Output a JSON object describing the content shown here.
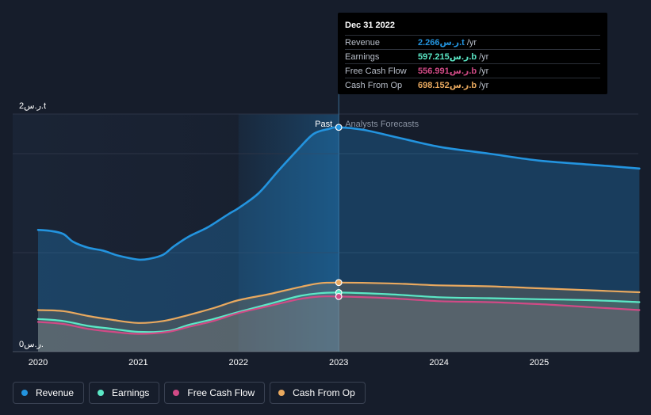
{
  "chart_data": {
    "type": "area",
    "ylim": [
      0,
      2.4
    ],
    "xlim": [
      2020,
      2026
    ],
    "y_labels": [
      {
        "value": 2.4,
        "text": "2ر.س.t"
      },
      {
        "value": 0,
        "text": "0ر.س."
      }
    ],
    "x_ticks": [
      {
        "value": 2020,
        "label": "2020"
      },
      {
        "value": 2021,
        "label": "2021"
      },
      {
        "value": 2022,
        "label": "2022"
      },
      {
        "value": 2023,
        "label": "2023"
      },
      {
        "value": 2024,
        "label": "2024"
      },
      {
        "value": 2025,
        "label": "2025"
      }
    ],
    "past_label": "Past",
    "forecast_label": "Analysts Forecasts",
    "divider_x": 2023,
    "highlight_start": 2022,
    "series": [
      {
        "name": "Revenue",
        "color": "#2394df",
        "points": [
          [
            2020,
            1.23
          ],
          [
            2020.12,
            1.22
          ],
          [
            2020.25,
            1.19
          ],
          [
            2020.35,
            1.11
          ],
          [
            2020.5,
            1.05
          ],
          [
            2020.65,
            1.02
          ],
          [
            2020.8,
            0.97
          ],
          [
            2021,
            0.93
          ],
          [
            2021.12,
            0.94
          ],
          [
            2021.25,
            0.98
          ],
          [
            2021.35,
            1.06
          ],
          [
            2021.5,
            1.16
          ],
          [
            2021.7,
            1.26
          ],
          [
            2021.9,
            1.39
          ],
          [
            2022,
            1.45
          ],
          [
            2022.2,
            1.6
          ],
          [
            2022.4,
            1.83
          ],
          [
            2022.6,
            2.05
          ],
          [
            2022.75,
            2.2
          ],
          [
            2022.9,
            2.25
          ],
          [
            2023,
            2.266
          ],
          [
            2023.25,
            2.24
          ],
          [
            2023.6,
            2.16
          ],
          [
            2024,
            2.07
          ],
          [
            2024.5,
            2.0
          ],
          [
            2025,
            1.93
          ],
          [
            2025.5,
            1.89
          ],
          [
            2026,
            1.85
          ]
        ]
      },
      {
        "name": "Earnings",
        "color": "#5be8c6",
        "points": [
          [
            2020,
            0.33
          ],
          [
            2020.25,
            0.31
          ],
          [
            2020.5,
            0.26
          ],
          [
            2020.75,
            0.23
          ],
          [
            2021,
            0.2
          ],
          [
            2021.3,
            0.21
          ],
          [
            2021.5,
            0.27
          ],
          [
            2021.75,
            0.33
          ],
          [
            2022,
            0.4
          ],
          [
            2022.3,
            0.48
          ],
          [
            2022.6,
            0.56
          ],
          [
            2022.8,
            0.59
          ],
          [
            2023,
            0.597
          ],
          [
            2023.5,
            0.58
          ],
          [
            2024,
            0.55
          ],
          [
            2024.5,
            0.54
          ],
          [
            2025,
            0.53
          ],
          [
            2025.5,
            0.52
          ],
          [
            2026,
            0.5
          ]
        ]
      },
      {
        "name": "Free Cash Flow",
        "color": "#d14a86",
        "points": [
          [
            2020,
            0.3
          ],
          [
            2020.25,
            0.28
          ],
          [
            2020.5,
            0.23
          ],
          [
            2020.75,
            0.2
          ],
          [
            2021,
            0.18
          ],
          [
            2021.3,
            0.2
          ],
          [
            2021.5,
            0.25
          ],
          [
            2021.75,
            0.31
          ],
          [
            2022,
            0.39
          ],
          [
            2022.3,
            0.46
          ],
          [
            2022.6,
            0.53
          ],
          [
            2022.8,
            0.556
          ],
          [
            2023,
            0.557
          ],
          [
            2023.5,
            0.54
          ],
          [
            2024,
            0.51
          ],
          [
            2024.5,
            0.5
          ],
          [
            2025,
            0.48
          ],
          [
            2025.5,
            0.45
          ],
          [
            2026,
            0.42
          ]
        ]
      },
      {
        "name": "Cash From Op",
        "color": "#e9a95f",
        "points": [
          [
            2020,
            0.42
          ],
          [
            2020.25,
            0.41
          ],
          [
            2020.5,
            0.36
          ],
          [
            2020.75,
            0.32
          ],
          [
            2021,
            0.29
          ],
          [
            2021.25,
            0.31
          ],
          [
            2021.5,
            0.37
          ],
          [
            2021.75,
            0.44
          ],
          [
            2022,
            0.52
          ],
          [
            2022.3,
            0.58
          ],
          [
            2022.6,
            0.65
          ],
          [
            2022.8,
            0.69
          ],
          [
            2023,
            0.698
          ],
          [
            2023.5,
            0.69
          ],
          [
            2024,
            0.67
          ],
          [
            2024.5,
            0.66
          ],
          [
            2025,
            0.64
          ],
          [
            2025.5,
            0.62
          ],
          [
            2026,
            0.6
          ]
        ]
      }
    ]
  },
  "tooltip": {
    "date": "Dec 31 2022",
    "rows": [
      {
        "name": "Revenue",
        "value": "2.266ر.س.t",
        "unit": "/yr",
        "color": "#2394df"
      },
      {
        "name": "Earnings",
        "value": "597.215ر.س.b",
        "unit": "/yr",
        "color": "#5be8c6"
      },
      {
        "name": "Free Cash Flow",
        "value": "556.991ر.س.b",
        "unit": "/yr",
        "color": "#d14a86"
      },
      {
        "name": "Cash From Op",
        "value": "698.152ر.س.b",
        "unit": "/yr",
        "color": "#e9a95f"
      }
    ]
  },
  "legend": [
    {
      "label": "Revenue",
      "color": "#2394df"
    },
    {
      "label": "Earnings",
      "color": "#5be8c6"
    },
    {
      "label": "Free Cash Flow",
      "color": "#d14a86"
    },
    {
      "label": "Cash From Op",
      "color": "#e9a95f"
    }
  ]
}
